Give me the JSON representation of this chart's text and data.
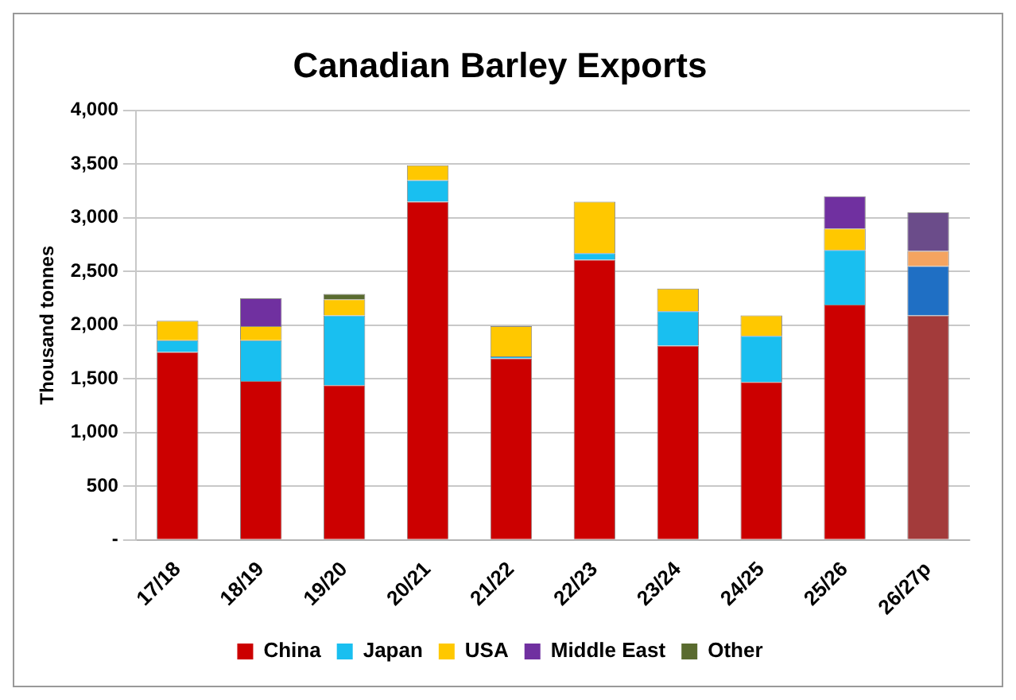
{
  "chart_data": {
    "type": "bar",
    "title": "Canadian Barley Exports",
    "ylabel": "Thousand tonnes",
    "stacked": true,
    "grid": "y",
    "legend": "bottom",
    "categories": [
      "17/18",
      "18/19",
      "19/20",
      "20/21",
      "21/22",
      "22/23",
      "23/24",
      "24/25",
      "25/26",
      "26/27p"
    ],
    "ylim": [
      0,
      4000
    ],
    "yticks": [
      {
        "value": 0,
        "label": "-"
      },
      {
        "value": 500,
        "label": "500"
      },
      {
        "value": 1000,
        "label": "1,000"
      },
      {
        "value": 1500,
        "label": "1,500"
      },
      {
        "value": 2000,
        "label": "2,000"
      },
      {
        "value": 2500,
        "label": "2,500"
      },
      {
        "value": 3000,
        "label": "3,000"
      },
      {
        "value": 3500,
        "label": "3,500"
      },
      {
        "value": 4000,
        "label": "4,000"
      }
    ],
    "series": [
      {
        "name": "China",
        "color": "#cc0000",
        "colors": [
          "#cc0000",
          "#cc0000",
          "#cc0000",
          "#cc0000",
          "#cc0000",
          "#cc0000",
          "#cc0000",
          "#cc0000",
          "#cc0000",
          "#a33b3b"
        ],
        "values": [
          1750,
          1480,
          1440,
          3150,
          1690,
          2610,
          1810,
          1470,
          2190,
          2090
        ]
      },
      {
        "name": "Japan",
        "color": "#19bff0",
        "colors": [
          "#19bff0",
          "#19bff0",
          "#19bff0",
          "#19bff0",
          "#19bff0",
          "#19bff0",
          "#19bff0",
          "#19bff0",
          "#19bff0",
          "#1f6fc4"
        ],
        "values": [
          110,
          380,
          650,
          200,
          20,
          60,
          320,
          430,
          510,
          460
        ]
      },
      {
        "name": "USA",
        "color": "#ffc800",
        "colors": [
          "#ffc800",
          "#ffc800",
          "#ffc800",
          "#ffc800",
          "#ffc800",
          "#ffc800",
          "#ffc800",
          "#ffc800",
          "#ffc800",
          "#f4a460"
        ],
        "values": [
          180,
          130,
          150,
          140,
          280,
          480,
          210,
          190,
          200,
          140
        ]
      },
      {
        "name": "Middle East",
        "color": "#7030a0",
        "colors": [
          "#7030a0",
          "#7030a0",
          "#7030a0",
          "#7030a0",
          "#7030a0",
          "#7030a0",
          "#7030a0",
          "#7030a0",
          "#7030a0",
          "#6b4c8a"
        ],
        "values": [
          null,
          260,
          null,
          null,
          null,
          null,
          null,
          null,
          300,
          360
        ]
      },
      {
        "name": "Other",
        "color": "#5a6b2f",
        "values": [
          null,
          null,
          50,
          null,
          null,
          null,
          null,
          null,
          null,
          null
        ]
      }
    ]
  }
}
